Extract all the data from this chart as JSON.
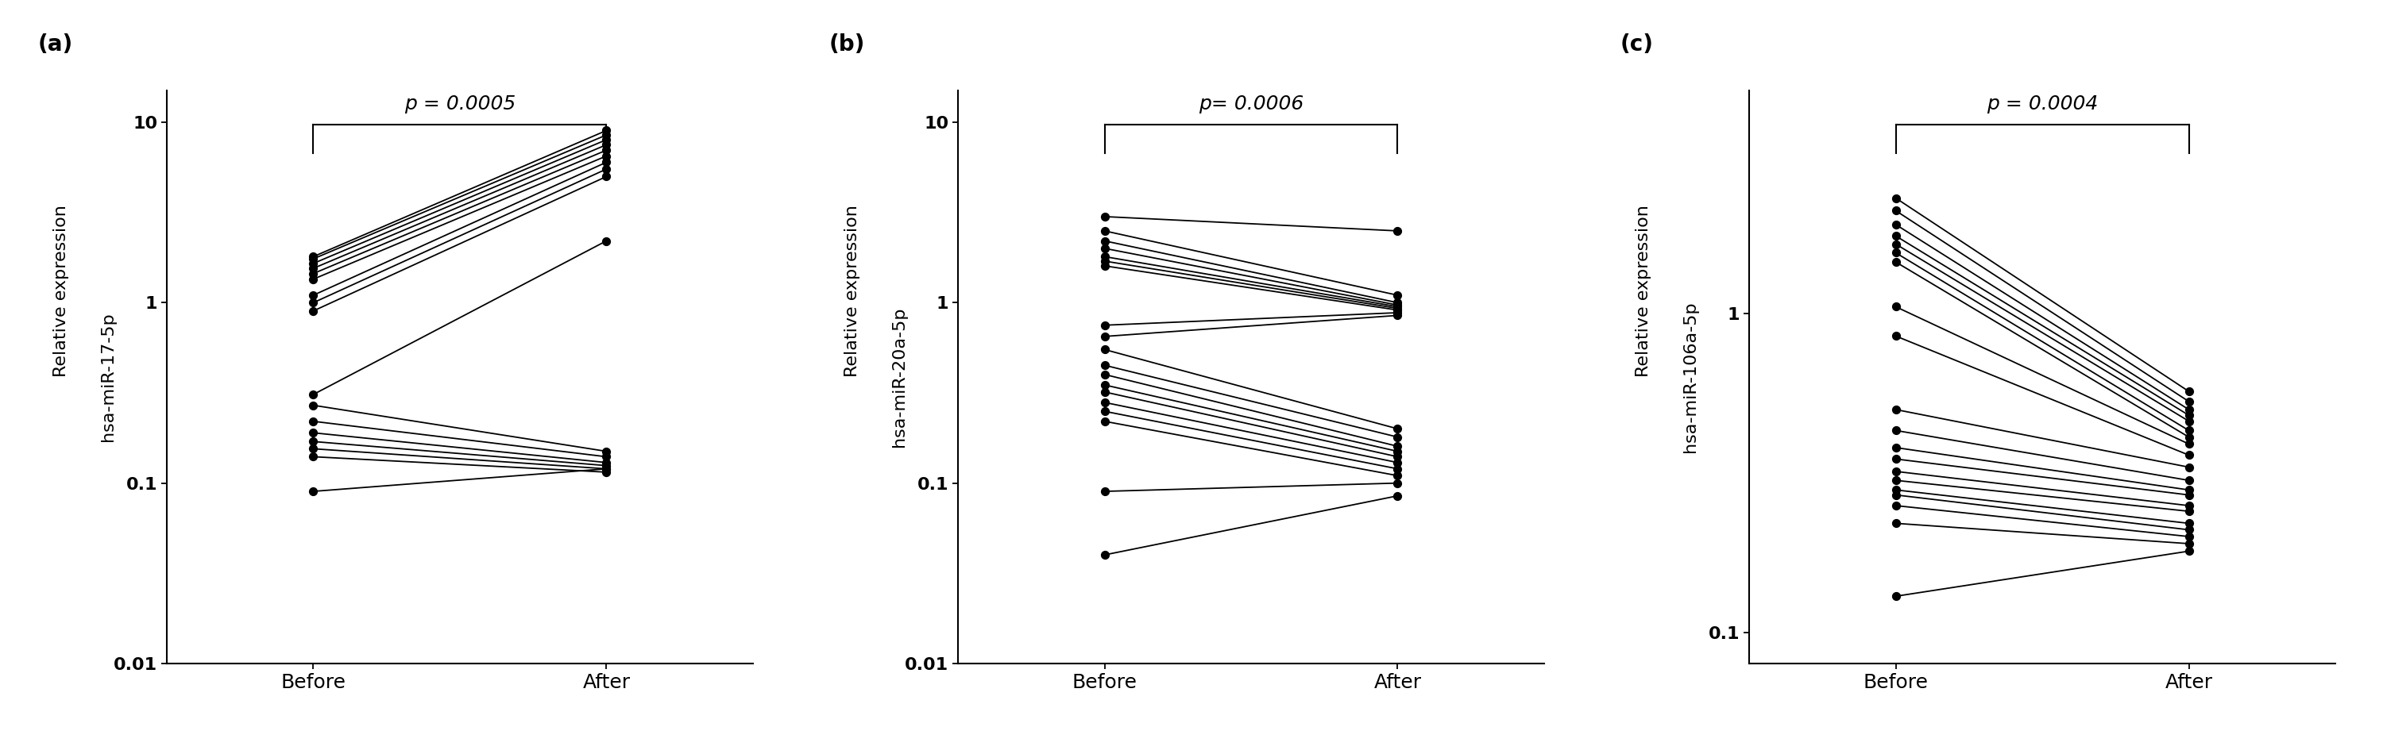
{
  "panels": [
    {
      "label": "(a)",
      "ylabel_line1": "Relative expression",
      "ylabel_line2": "hsa-miR-17-5p",
      "pvalue": "p = 0.0005",
      "ylim": [
        0.01,
        15
      ],
      "yticks": [
        0.01,
        0.1,
        1,
        10
      ],
      "yticklabels": [
        "0.01",
        "0.1",
        "1",
        "10"
      ],
      "before": [
        1.8,
        1.75,
        1.65,
        1.55,
        1.45,
        1.35,
        1.1,
        1.0,
        0.9,
        0.31,
        0.27,
        0.22,
        0.19,
        0.17,
        0.155,
        0.14,
        0.09
      ],
      "after": [
        9.0,
        8.5,
        8.0,
        7.5,
        7.0,
        6.5,
        6.0,
        5.5,
        5.0,
        2.2,
        0.15,
        0.14,
        0.13,
        0.125,
        0.12,
        0.115,
        0.12
      ]
    },
    {
      "label": "(b)",
      "ylabel_line1": "Relative expression",
      "ylabel_line2": "hsa-miR-20a-5p",
      "pvalue": "p= 0.0006",
      "ylim": [
        0.01,
        15
      ],
      "yticks": [
        0.01,
        0.1,
        1,
        10
      ],
      "yticklabels": [
        "0.01",
        "0.1",
        "1",
        "10"
      ],
      "before": [
        3.0,
        2.5,
        2.2,
        2.0,
        1.8,
        1.7,
        1.6,
        0.75,
        0.65,
        0.55,
        0.45,
        0.4,
        0.35,
        0.32,
        0.28,
        0.25,
        0.22,
        0.09,
        0.04
      ],
      "after": [
        2.5,
        1.1,
        1.0,
        0.97,
        0.95,
        0.93,
        0.91,
        0.88,
        0.85,
        0.2,
        0.18,
        0.16,
        0.15,
        0.14,
        0.13,
        0.12,
        0.11,
        0.1,
        0.085
      ]
    },
    {
      "label": "(c)",
      "ylabel_line1": "Relative expression",
      "ylabel_line2": "hsa-miR-106a-5p",
      "pvalue": "p = 0.0004",
      "ylim": [
        0.08,
        5
      ],
      "yticks": [
        0.1,
        1
      ],
      "yticklabels": [
        "0.1",
        "1"
      ],
      "before": [
        2.3,
        2.1,
        1.9,
        1.75,
        1.65,
        1.55,
        1.45,
        1.05,
        0.85,
        0.5,
        0.43,
        0.38,
        0.35,
        0.32,
        0.3,
        0.28,
        0.27,
        0.25,
        0.22,
        0.13
      ],
      "after": [
        0.57,
        0.53,
        0.5,
        0.48,
        0.46,
        0.43,
        0.41,
        0.39,
        0.36,
        0.33,
        0.3,
        0.28,
        0.27,
        0.25,
        0.24,
        0.22,
        0.21,
        0.2,
        0.19,
        0.18
      ]
    }
  ],
  "bg_color": "#ffffff",
  "dot_color": "#000000",
  "line_color": "#000000",
  "dot_size": 50,
  "line_width": 1.3,
  "font_size_ylabel": 16,
  "font_size_tick": 16,
  "font_size_pval": 18,
  "font_size_panel": 20
}
